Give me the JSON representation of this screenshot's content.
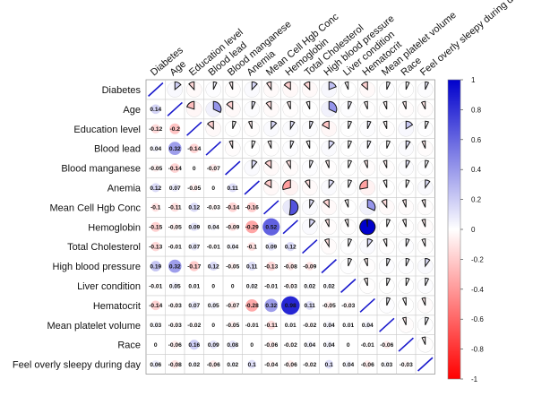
{
  "chart_data": {
    "type": "heatmap",
    "variables": [
      "Diabetes",
      "Age",
      "Education level",
      "Blood lead",
      "Blood manganese",
      "Anemia",
      "Mean Cell Hgb Conc",
      "Hemoglobin",
      "Total Cholesterol",
      "High blood pressure",
      "Liver condition",
      "Hematocrit",
      "Mean platelet volume",
      "Race",
      "Feel overly sleepy during day"
    ],
    "column_labels": [
      "Diabetes",
      "Age",
      "Education level",
      "Blood lead",
      "Blood manganese",
      "Anemia",
      "Mean Cell Hgb Conc",
      "Hemoglobin",
      "Total Cholesterol",
      "High blood pressure",
      "Liver condition",
      "Hematocrit",
      "Mean platelet volume",
      "Race",
      "Feel overly sleepy during day"
    ],
    "lower_triangle_labels": [
      [],
      [
        "0.14"
      ],
      [
        "-0.12",
        "-0.2"
      ],
      [
        "0.04",
        "0.32",
        "-0.14"
      ],
      [
        "-0.05",
        "-0.14",
        "0",
        "-0.07"
      ],
      [
        "0.12",
        "0.07",
        "-0.05",
        "0",
        "0.11"
      ],
      [
        "-0.1",
        "-0.11",
        "0.12",
        "-0.03",
        "-0.14",
        "-0.16"
      ],
      [
        "-0.15",
        "-0.05",
        "0.09",
        "0.04",
        "-0.09",
        "-0.29",
        "0.52"
      ],
      [
        "-0.13",
        "-0.01",
        "0.07",
        "-0.01",
        "0.04",
        "-0.1",
        "0.09",
        "0.12"
      ],
      [
        "0.19",
        "0.32",
        "-0.17",
        "0.12",
        "-0.05",
        "0.11",
        "-0.13",
        "-0.08",
        "-0.09"
      ],
      [
        "-0.01",
        "0.05",
        "0.01",
        "0",
        "0",
        "0.02",
        "-0.01",
        "-0.03",
        "0.02",
        "0.02"
      ],
      [
        "-0.14",
        "-0.03",
        "0.07",
        "0.05",
        "-0.07",
        "-0.28",
        "0.32",
        "0.98",
        "0.11",
        "-0.05",
        "-0.03"
      ],
      [
        "0.03",
        "-0.03",
        "-0.02",
        "0",
        "-0.05",
        "-0.01",
        "-0.11",
        "0.01",
        "-0.02",
        "0.04",
        "0.01",
        "0.04"
      ],
      [
        "0",
        "-0.06",
        "0.16",
        "0.09",
        "0.08",
        "0",
        "-0.06",
        "-0.02",
        "0.04",
        "0.04",
        "0",
        "-0.01",
        "-0.06"
      ],
      [
        "0.06",
        "-0.08",
        "0.02",
        "-0.06",
        "0.02",
        "0.1",
        "-0.04",
        "-0.06",
        "-0.02",
        "0.1",
        "0.04",
        "-0.06",
        "0.03",
        "-0.03"
      ]
    ],
    "legend": {
      "type": "color-bar",
      "position": "right",
      "range": [
        -1,
        1
      ],
      "ticks": [
        "1",
        "0.8",
        "0.6",
        "0.4",
        "0.2",
        "0",
        "-0.2",
        "-0.4",
        "-0.6",
        "-0.8",
        "-1"
      ],
      "colors": {
        "positive": "#0000cc",
        "zero": "#ffffff",
        "negative": "#ff0000"
      }
    },
    "upper_triangle": "pie glyphs (fraction = |r|)",
    "diagonal": "line glyph",
    "grid": true
  }
}
